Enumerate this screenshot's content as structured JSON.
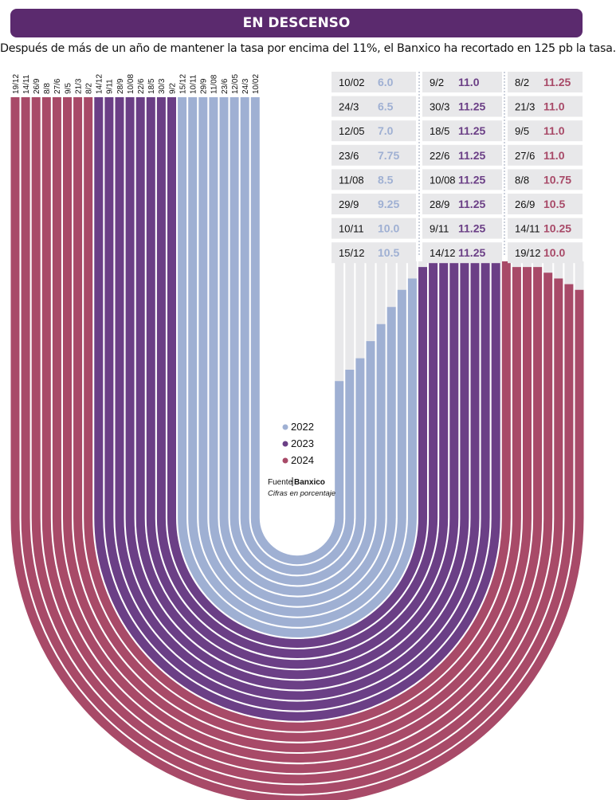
{
  "header": {
    "title": "EN DESCENSO",
    "subtitle": "Después de más de un año de mantener la tasa por encima del 11%, el Banxico ha recortado en 125 pb la tasa."
  },
  "legend": [
    {
      "label": "2022",
      "color": "#9fb0d3"
    },
    {
      "label": "2023",
      "color": "#6b3f86"
    },
    {
      "label": "2024",
      "color": "#a84a68"
    }
  ],
  "source": {
    "prefix": "Fuente",
    "name": "Banxico",
    "note": "Cifras en porcentaje"
  },
  "chart_data": {
    "type": "bar",
    "title": "EN DESCENSO",
    "unit": "Cifras en porcentaje",
    "value_range": [
      0,
      12
    ],
    "series": [
      {
        "name": "2022",
        "color": "#9fb0d3",
        "dates": [
          "10/02",
          "24/3",
          "12/05",
          "23/6",
          "11/08",
          "29/9",
          "10/11",
          "15/12"
        ],
        "values": [
          6.0,
          6.5,
          7.0,
          7.75,
          8.5,
          9.25,
          10.0,
          10.5
        ],
        "labels": [
          "6.0",
          "6.5",
          "7.0",
          "7.75",
          "8.5",
          "9.25",
          "10.0",
          "10.5"
        ]
      },
      {
        "name": "2023",
        "color": "#6b3f86",
        "dates": [
          "9/2",
          "30/3",
          "18/5",
          "22/6",
          "10/08",
          "28/9",
          "9/11",
          "14/12"
        ],
        "values": [
          11.0,
          11.25,
          11.25,
          11.25,
          11.25,
          11.25,
          11.25,
          11.25
        ],
        "labels": [
          "11.0",
          "11.25",
          "11.25",
          "11.25",
          "11.25",
          "11.25",
          "11.25",
          "11.25"
        ]
      },
      {
        "name": "2024",
        "color": "#a84a68",
        "dates": [
          "8/2",
          "21/3",
          "9/5",
          "27/6",
          "8/8",
          "26/9",
          "14/11",
          "19/12"
        ],
        "values": [
          11.25,
          11.0,
          11.0,
          11.0,
          10.75,
          10.5,
          10.25,
          10.0
        ],
        "labels": [
          "11.25",
          "11.0",
          "11.0",
          "11.0",
          "10.75",
          "10.5",
          "10.25",
          "10.0"
        ]
      }
    ]
  }
}
